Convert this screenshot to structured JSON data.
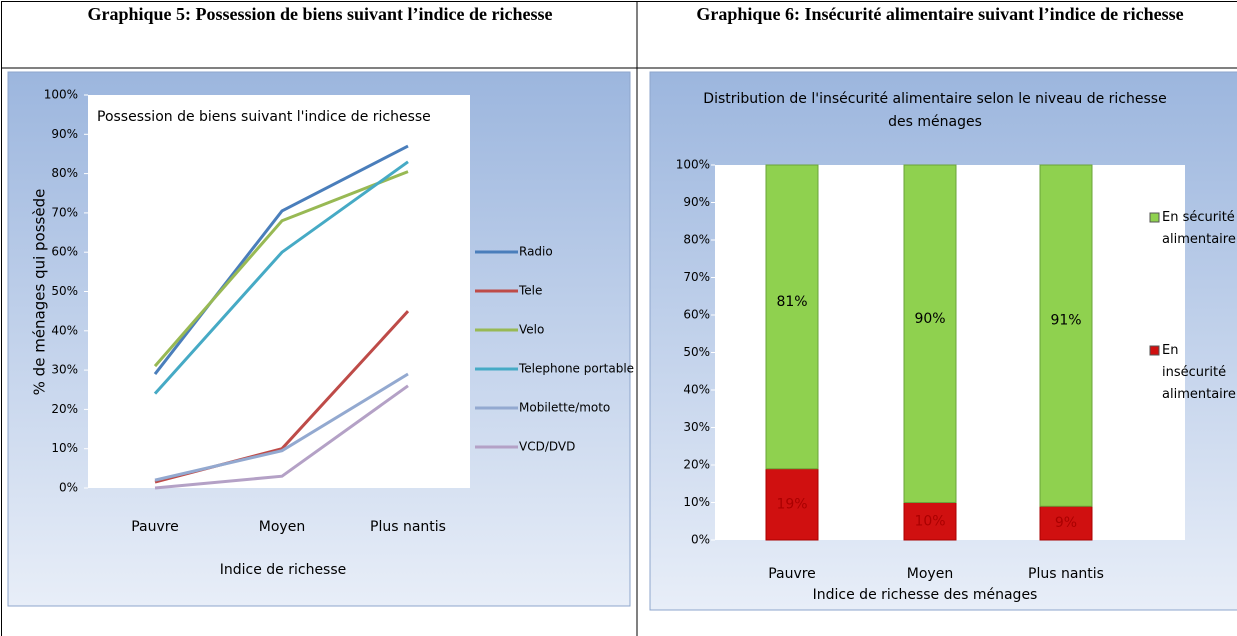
{
  "headers": [
    "Graphique 5: Possession de biens suivant l’indice de richesse",
    "Graphique 6: Insécurité alimentaire suivant l’indice de richesse"
  ],
  "chart_data": [
    {
      "type": "line",
      "title": "Possession de biens suivant l'indice de richesse",
      "y_label": "% de ménages qui possède",
      "x_label": "Indice de richesse",
      "categories": [
        "Pauvre",
        "Moyen",
        "Plus nantis"
      ],
      "ylim": [
        0,
        100
      ],
      "yticks": [
        {
          "value": 0,
          "label": "0%"
        },
        {
          "value": 10,
          "label": "10%"
        },
        {
          "value": 20,
          "label": "20%"
        },
        {
          "value": 30,
          "label": "30%"
        },
        {
          "value": 40,
          "label": "40%"
        },
        {
          "value": 50,
          "label": "50%"
        },
        {
          "value": 60,
          "label": "60%"
        },
        {
          "value": 70,
          "label": "70%"
        },
        {
          "value": 80,
          "label": "80%"
        },
        {
          "value": 90,
          "label": "90%"
        },
        {
          "value": 100,
          "label": "100%"
        }
      ],
      "grid": false,
      "legend": "right",
      "series": [
        {
          "name": "Radio",
          "color": "#4a7ebb",
          "values": [
            29,
            70.5,
            87
          ]
        },
        {
          "name": "Tele",
          "color": "#be4b48",
          "values": [
            1.5,
            10,
            45
          ]
        },
        {
          "name": "Velo",
          "color": "#98b954",
          "values": [
            31,
            68,
            80.5
          ]
        },
        {
          "name": "Telephone portable",
          "color": "#46aac5",
          "values": [
            24,
            60,
            83
          ]
        },
        {
          "name": "Mobilette/moto",
          "color": "#93a9d0",
          "values": [
            2,
            9.5,
            29
          ]
        },
        {
          "name": "VCD/DVD",
          "color": "#b4a1c6",
          "values": [
            0,
            3,
            26
          ]
        }
      ]
    },
    {
      "type": "stacked_bar",
      "title": "Distribution de l'insécurité alimentaire selon le niveau de richesse des ménages",
      "x_label": "Indice de richesse des ménages",
      "categories": [
        "Pauvre",
        "Moyen",
        "Plus nantis"
      ],
      "ylim": [
        0,
        100
      ],
      "yticks": [
        {
          "value": 0,
          "label": "0%"
        },
        {
          "value": 10,
          "label": "10%"
        },
        {
          "value": 20,
          "label": "20%"
        },
        {
          "value": 30,
          "label": "30%"
        },
        {
          "value": 40,
          "label": "40%"
        },
        {
          "value": 50,
          "label": "50%"
        },
        {
          "value": 60,
          "label": "60%"
        },
        {
          "value": 70,
          "label": "70%"
        },
        {
          "value": 80,
          "label": "80%"
        },
        {
          "value": 90,
          "label": "90%"
        },
        {
          "value": 100,
          "label": "100%"
        }
      ],
      "grid": false,
      "legend": "right",
      "series": [
        {
          "name": "En insécurité alimentaire",
          "color": "#d01010",
          "values": [
            19,
            10,
            9
          ],
          "value_labels": [
            "19%",
            "10%",
            "9%"
          ]
        },
        {
          "name": "En sécurité alimentaire",
          "color": "#8fd14f",
          "values": [
            81,
            90,
            91
          ],
          "value_labels": [
            "81%",
            "90%",
            "91%"
          ]
        }
      ]
    }
  ]
}
